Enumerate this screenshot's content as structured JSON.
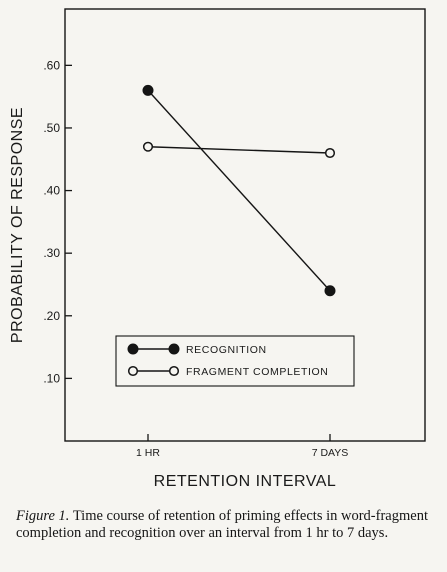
{
  "chart_data": {
    "type": "line",
    "categories": [
      "1 HR",
      "7 DAYS"
    ],
    "series": [
      {
        "name": "RECOGNITION",
        "values": [
          0.56,
          0.24
        ],
        "marker": "filled-circle",
        "color": "#151515"
      },
      {
        "name": "FRAGMENT COMPLETION",
        "values": [
          0.47,
          0.46
        ],
        "marker": "open-circle",
        "color": "#151515"
      }
    ],
    "y_ticks": [
      ".10",
      ".20",
      ".30",
      ".40",
      ".50",
      ".60"
    ],
    "y_tick_values": [
      0.1,
      0.2,
      0.3,
      0.4,
      0.5,
      0.6
    ],
    "ylim": [
      0.0,
      0.69
    ],
    "xlabel": "RETENTION INTERVAL",
    "ylabel": "PROBABILITY OF RESPONSE",
    "legend_position": "bottom-center-inside",
    "grid": false
  },
  "caption": {
    "label": "Figure 1.",
    "text": "Time course of retention of priming effects in word-fragment completion and recognition over an interval from 1 hr to 7 days."
  }
}
